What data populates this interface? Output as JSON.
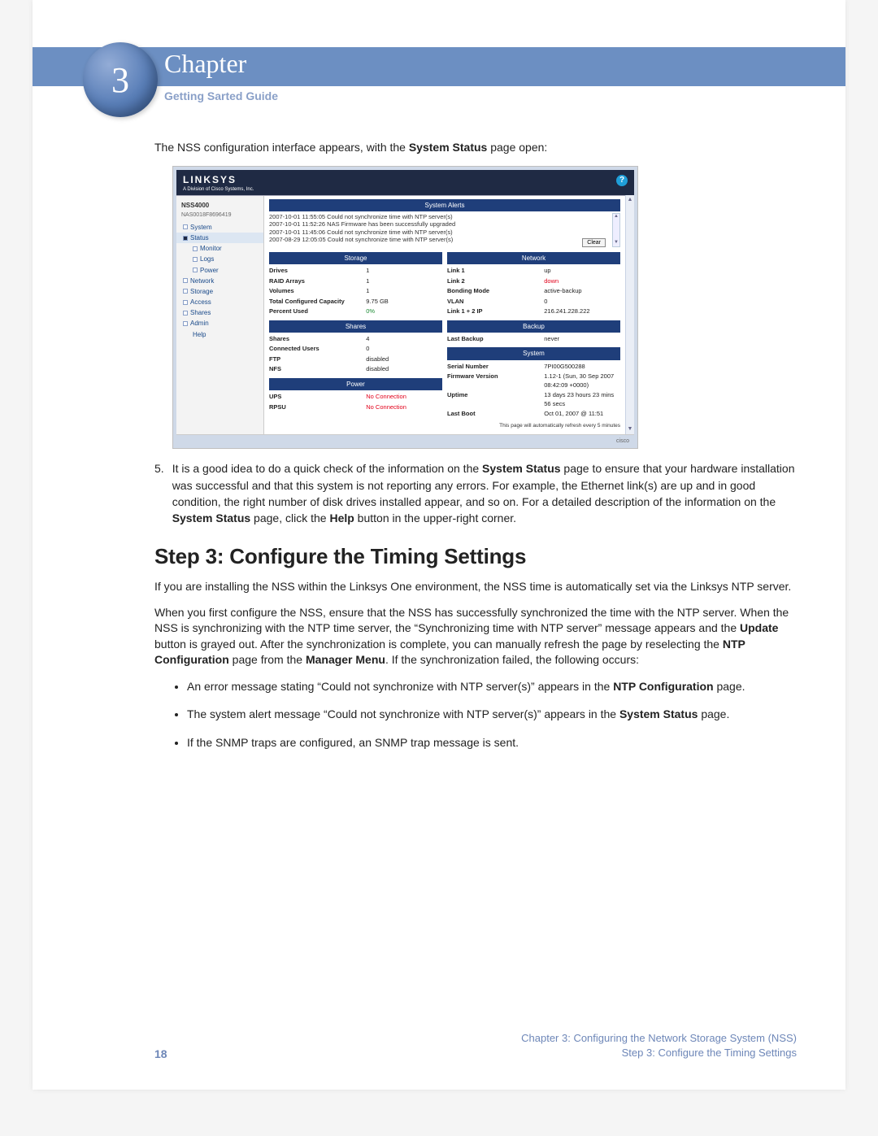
{
  "header": {
    "chapter_number": "3",
    "chapter_word": "Chapter",
    "subtitle": "Getting Sarted Guide",
    "accent_color": "#6c8fc2",
    "circle_font_color": "#ffffff"
  },
  "intro_line_pre": "The NSS configuration interface appears, with the ",
  "intro_line_bold": "System Status",
  "intro_line_post": " page open:",
  "screenshot": {
    "brand": "LINKSYS",
    "brand_sub": "A Division of Cisco Systems, Inc.",
    "help": "?",
    "sidebar": {
      "product": "NSS4000",
      "serial": "NAS0018F8696419",
      "items": [
        {
          "label": "System",
          "box": true,
          "sel": false
        },
        {
          "label": "Status",
          "box": true,
          "sel": true,
          "fill": true
        },
        {
          "label": "Monitor",
          "box": true,
          "sel": false,
          "sub": true
        },
        {
          "label": "Logs",
          "box": true,
          "sel": false,
          "sub": true
        },
        {
          "label": "Power",
          "box": true,
          "sel": false,
          "sub": true
        },
        {
          "label": "Network",
          "box": true,
          "sel": false
        },
        {
          "label": "Storage",
          "box": true,
          "sel": false
        },
        {
          "label": "Access",
          "box": true,
          "sel": false
        },
        {
          "label": "Shares",
          "box": true,
          "sel": false
        },
        {
          "label": "Admin",
          "box": true,
          "sel": false
        },
        {
          "label": "Help",
          "box": false,
          "sel": false,
          "sub": true
        }
      ]
    },
    "alerts": {
      "title": "System Alerts",
      "lines": [
        "2007-10-01 11:55:05 Could not synchronize time with NTP server(s)",
        "2007-10-01 11:52:26 NAS Firmware has been successfully upgraded",
        "2007-10-01 11:45:06 Could not synchronize time with NTP server(s)",
        "2007-08-29 12:05:05 Could not synchronize time with NTP server(s)"
      ],
      "clear_label": "Clear"
    },
    "storage": {
      "title": "Storage",
      "rows": [
        {
          "k": "Drives",
          "v": "1"
        },
        {
          "k": "RAID Arrays",
          "v": "1"
        },
        {
          "k": "Volumes",
          "v": "1"
        },
        {
          "k": "Total Configured Capacity",
          "v": "9.75 GB"
        },
        {
          "k": "Percent Used",
          "v": "0%",
          "green": true
        }
      ]
    },
    "network": {
      "title": "Network",
      "rows": [
        {
          "k": "Link 1",
          "v": "up"
        },
        {
          "k": "Link 2",
          "v": "down",
          "red": true
        },
        {
          "k": "Bonding Mode",
          "v": "active-backup"
        },
        {
          "k": "VLAN",
          "v": "0"
        },
        {
          "k": "Link 1 + 2 IP",
          "v": "216.241.228.222"
        }
      ]
    },
    "shares": {
      "title": "Shares",
      "rows": [
        {
          "k": "Shares",
          "v": "4"
        },
        {
          "k": "Connected Users",
          "v": "0"
        },
        {
          "k": "FTP",
          "v": "disabled"
        },
        {
          "k": "NFS",
          "v": "disabled"
        }
      ]
    },
    "backup": {
      "title": "Backup",
      "rows": [
        {
          "k": "Last Backup",
          "v": "never"
        }
      ]
    },
    "power": {
      "title": "Power",
      "rows": [
        {
          "k": "UPS",
          "v": "No Connection",
          "red": true
        },
        {
          "k": "RPSU",
          "v": "No Connection",
          "red": true
        }
      ]
    },
    "system": {
      "title": "System",
      "rows": [
        {
          "k": "Serial Number",
          "v": "7PI00G500288"
        },
        {
          "k": "Firmware Version",
          "v": "1.12-1 (Sun, 30 Sep 2007 08:42:09 +0000)"
        },
        {
          "k": "Uptime",
          "v": "13 days 23 hours 23 mins 56 secs"
        },
        {
          "k": "Last Boot",
          "v": "Oct 01, 2007 @ 11:51"
        }
      ],
      "footnote": "This page will automatically refresh every 5 minutes"
    },
    "cisco_label": "cisco"
  },
  "step5": {
    "n": "5.",
    "t1": "It is a good idea to do a quick check of the information on the ",
    "b1": "System Status",
    "t2": " page to ensure that your hardware installation was successful and that this system is not reporting any errors. For example, the Ethernet link(s) are up and in good condition, the right number of disk drives installed appear, and so on. For a detailed description of the information on the ",
    "b2": "System Status",
    "t3": " page, click the ",
    "b3": "Help",
    "t4": " button in the upper-right corner."
  },
  "step_heading": "Step 3: Configure the Timing Settings",
  "para1": "If you are installing the NSS within the Linksys One environment, the NSS time is automatically set via the Linksys NTP server.",
  "para2_a": "When you first configure the NSS, ensure that the NSS has successfully synchronized the time with the NTP server. When the NSS is synchronizing with the NTP time server, the “Synchronizing time with NTP server” message appears and the ",
  "para2_b": "Update",
  "para2_c": " button is grayed out. After the synchronization is complete, you can manually refresh the page by reselecting the ",
  "para2_d": "NTP Configuration",
  "para2_e": " page from the ",
  "para2_f": "Manager Menu",
  "para2_g": ". If the synchronization failed, the following occurs:",
  "bullets": [
    {
      "t1": "An error message stating “Could not synchronize with NTP server(s)” appears in the ",
      "b": "NTP Configuration",
      "t2": " page."
    },
    {
      "t1": "The system alert message “Could not synchronize with NTP server(s)” appears in the ",
      "b": "System Status",
      "t2": " page."
    },
    {
      "t1": "If the SNMP traps are configured, an SNMP trap message is sent.",
      "b": "",
      "t2": ""
    }
  ],
  "footer": {
    "page": "18",
    "line1": "Chapter 3: Configuring the Network Storage System (NSS)",
    "line2": "Step 3: Configure the Timing Settings"
  }
}
